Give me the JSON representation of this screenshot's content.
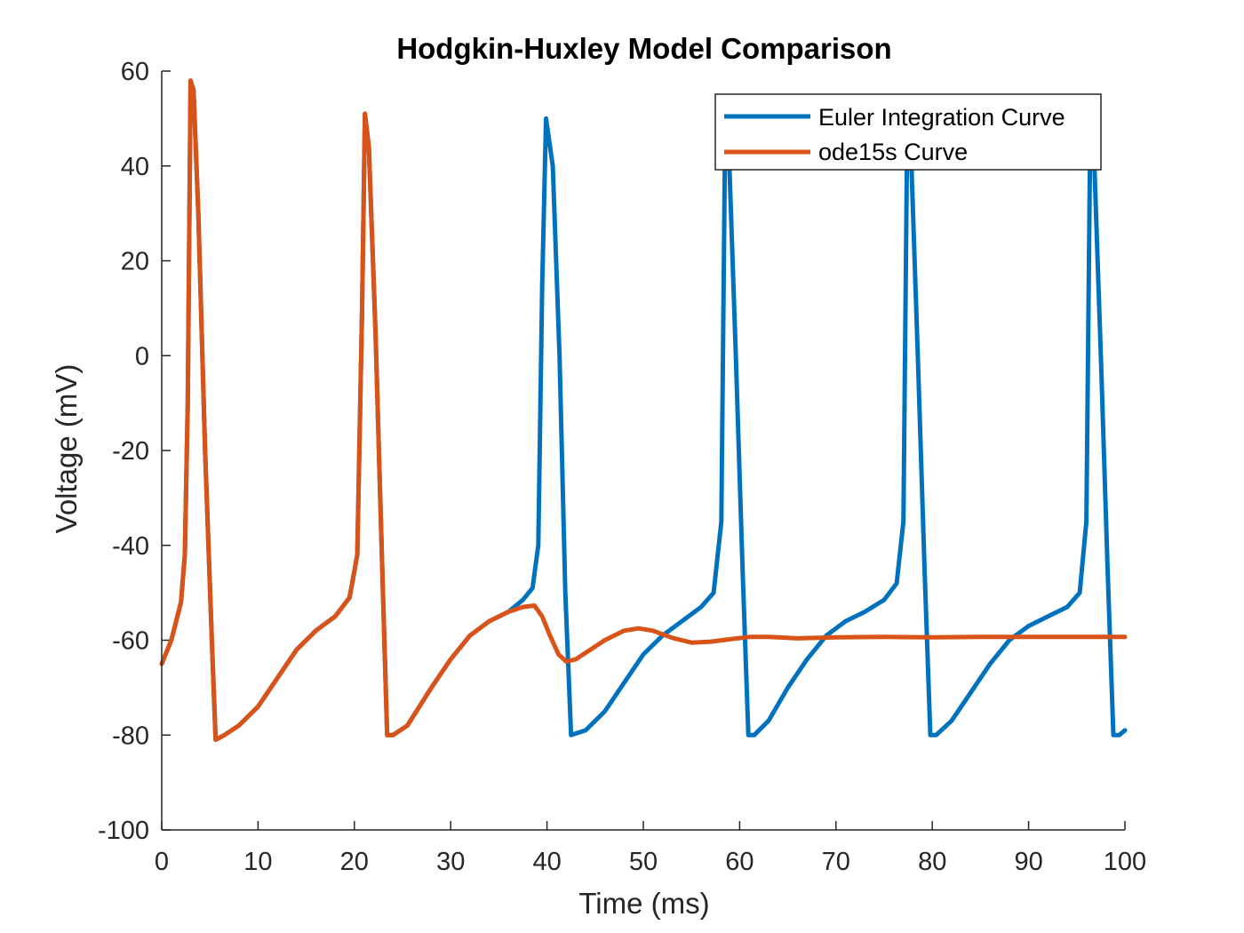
{
  "chart_data": {
    "type": "line",
    "title": "Hodgkin-Huxley Model Comparison",
    "xlabel": "Time (ms)",
    "ylabel": "Voltage (mV)",
    "xlim": [
      0,
      100
    ],
    "ylim": [
      -100,
      60
    ],
    "xticks": [
      0,
      10,
      20,
      30,
      40,
      50,
      60,
      70,
      80,
      90,
      100
    ],
    "yticks": [
      -100,
      -80,
      -60,
      -40,
      -20,
      0,
      20,
      40,
      60
    ],
    "grid": false,
    "legend_position": "top-right",
    "series": [
      {
        "name": "Euler Integration Curve",
        "color": "#0072BD",
        "x": [
          0,
          1,
          2,
          2.4,
          2.7,
          3.0,
          3.3,
          3.8,
          4.5,
          5.2,
          5.6,
          6.5,
          8,
          10,
          12,
          14,
          16,
          18,
          19.5,
          20.3,
          20.8,
          21.1,
          21.5,
          22.2,
          22.9,
          23.4,
          24,
          25.5,
          28,
          30,
          32,
          34,
          36,
          37.5,
          38.5,
          39.1,
          39.5,
          39.9,
          40.6,
          41.3,
          41.9,
          42.5,
          44,
          46,
          48,
          50,
          52,
          54,
          56,
          57.3,
          58.1,
          58.5,
          58.9,
          59.6,
          60.3,
          60.9,
          61.5,
          63,
          65,
          67,
          69,
          71,
          73,
          75,
          76.3,
          77.0,
          77.4,
          77.8,
          78.5,
          79.2,
          79.8,
          80.4,
          82,
          84,
          86,
          88,
          90,
          92,
          94,
          95.3,
          96.0,
          96.4,
          96.8,
          97.5,
          98.2,
          98.8,
          99.4,
          100
        ],
        "y": [
          -65,
          -60,
          -52,
          -42,
          -10,
          58,
          56,
          30,
          -20,
          -60,
          -81,
          -80,
          -78,
          -74,
          -68,
          -62,
          -58,
          -55,
          -51,
          -42,
          10,
          51,
          44,
          5,
          -45,
          -80,
          -80,
          -78,
          -70,
          -64,
          -59,
          -56,
          -54,
          -51.5,
          -49,
          -40,
          15,
          50,
          40,
          0,
          -50,
          -80,
          -79,
          -75,
          -69,
          -63,
          -59,
          -56,
          -53,
          -50,
          -35,
          48,
          42,
          0,
          -45,
          -80,
          -80,
          -77,
          -70,
          -64,
          -59,
          -56,
          -54,
          -51.5,
          -48,
          -35,
          48,
          42,
          0,
          -45,
          -80,
          -80,
          -77,
          -71,
          -65,
          -60,
          -57,
          -55,
          -53,
          -50,
          -35,
          48,
          42,
          0,
          -45,
          -80,
          -80,
          -79
        ]
      },
      {
        "name": "ode15s Curve",
        "color": "#D95319",
        "x": [
          0,
          1,
          2,
          2.4,
          2.7,
          3.0,
          3.3,
          3.8,
          4.5,
          5.2,
          5.6,
          6.5,
          8,
          10,
          12,
          14,
          16,
          18,
          19.5,
          20.3,
          20.8,
          21.1,
          21.5,
          22.2,
          22.9,
          23.4,
          24,
          25.5,
          28,
          30,
          32,
          34,
          36,
          37.5,
          38.7,
          39.5,
          40.3,
          41.2,
          42,
          43,
          44.5,
          46,
          48,
          49.5,
          51,
          53,
          55,
          57,
          59,
          61,
          63,
          66,
          70,
          75,
          80,
          85,
          90,
          95,
          100
        ],
        "y": [
          -65,
          -60,
          -52,
          -42,
          -10,
          58,
          56,
          30,
          -20,
          -60,
          -81,
          -80,
          -78,
          -74,
          -68,
          -62,
          -58,
          -55,
          -51,
          -42,
          10,
          51,
          44,
          5,
          -45,
          -80,
          -80,
          -78,
          -70,
          -64,
          -59,
          -56,
          -54,
          -53,
          -52.7,
          -55,
          -59,
          -63,
          -64.5,
          -64,
          -62,
          -60,
          -58,
          -57.5,
          -58,
          -59.5,
          -60.5,
          -60.3,
          -59.8,
          -59.3,
          -59.3,
          -59.6,
          -59.4,
          -59.3,
          -59.4,
          -59.3,
          -59.3,
          -59.3,
          -59.3
        ]
      }
    ]
  }
}
